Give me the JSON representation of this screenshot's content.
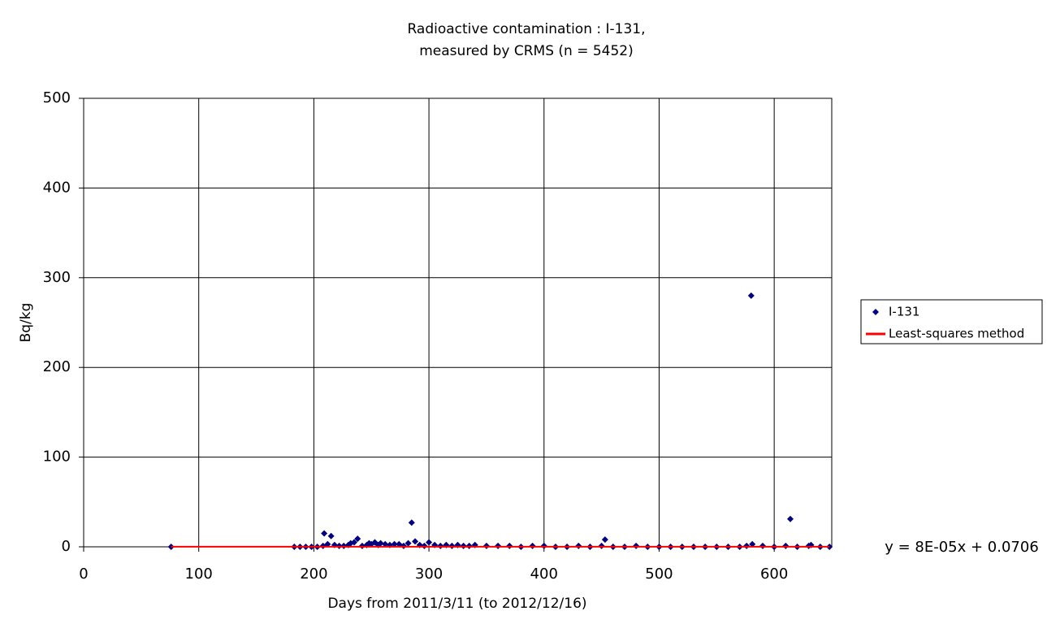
{
  "chart_data": {
    "type": "scatter",
    "title": [
      "Radioactive contamination : I-131,",
      "measured by CRMS (n = 5452)"
    ],
    "x_label": "Days from 2011/3/11 (to 2012/12/16)",
    "y_label": "Bq/kg",
    "xlim": [
      0,
      650
    ],
    "xticks": [
      0,
      100,
      200,
      300,
      400,
      500,
      600
    ],
    "ylim": [
      0,
      500
    ],
    "yticks": [
      0,
      100,
      200,
      300,
      400,
      500
    ],
    "grid": true,
    "legend": "right",
    "annotations": [
      "y = 8E-05x + 0.0706"
    ],
    "series": [
      {
        "name": "I-131",
        "type": "scatter",
        "color": "#000080",
        "x": [
          76,
          183,
          188,
          193,
          198,
          203,
          208,
          209,
          212,
          215,
          218,
          222,
          226,
          230,
          232,
          235,
          238,
          242,
          246,
          248,
          250,
          253,
          256,
          258,
          262,
          266,
          270,
          274,
          278,
          282,
          285,
          288,
          292,
          296,
          300,
          305,
          310,
          315,
          320,
          325,
          330,
          335,
          340,
          350,
          360,
          370,
          380,
          390,
          400,
          410,
          420,
          430,
          440,
          450,
          453,
          460,
          470,
          480,
          490,
          500,
          510,
          520,
          530,
          540,
          550,
          560,
          570,
          576,
          580,
          581,
          590,
          600,
          610,
          614,
          620,
          630,
          632,
          640,
          648
        ],
        "values": [
          0,
          0,
          0,
          0,
          0,
          0,
          1,
          15,
          3,
          12,
          2,
          1,
          1,
          2,
          4,
          5,
          9,
          1,
          2,
          4,
          3,
          5,
          2,
          4,
          3,
          2,
          3,
          3,
          1,
          4,
          27,
          6,
          2,
          1,
          5,
          2,
          1,
          2,
          1,
          2,
          1,
          1,
          2,
          1,
          1,
          1,
          0,
          1,
          1,
          0,
          0,
          1,
          0,
          1,
          8,
          0,
          0,
          1,
          0,
          0,
          0,
          0,
          0,
          0,
          0,
          0,
          0,
          1,
          280,
          3,
          1,
          0,
          1,
          31,
          0,
          1,
          2,
          0,
          0
        ]
      },
      {
        "name": "Least-squares method",
        "type": "line",
        "color": "#ff0000",
        "x": [
          76,
          648
        ],
        "values": [
          0.0767,
          0.1224
        ]
      }
    ]
  }
}
